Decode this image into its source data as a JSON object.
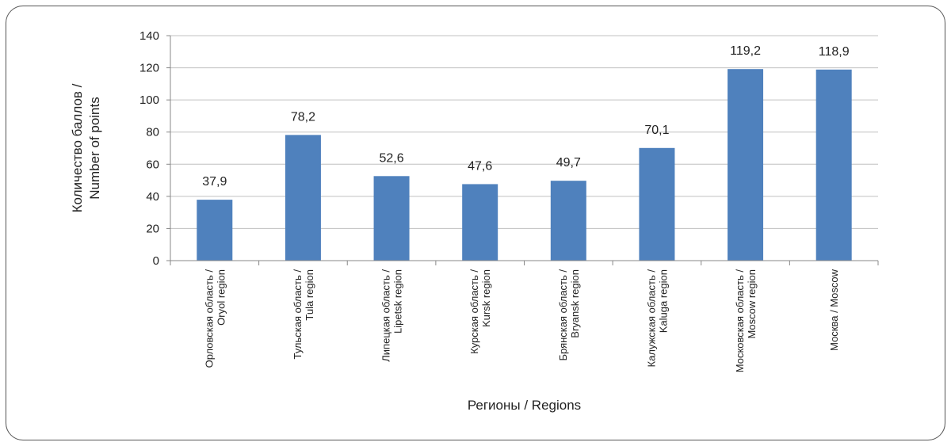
{
  "chart_data": {
    "type": "bar",
    "categories": [
      [
        "Орловская область /",
        "Oryol region"
      ],
      [
        "Тульская область /",
        "Tula region"
      ],
      [
        "Липецкая область /",
        "Lipetsk region"
      ],
      [
        "Курская область /",
        "Kursk region"
      ],
      [
        "Брянская область /",
        "Bryansk region"
      ],
      [
        "Калужская область /",
        "Kaluga region"
      ],
      [
        "Московская область /",
        "Moscow region"
      ],
      [
        "Москва / Moscow"
      ]
    ],
    "values": [
      37.9,
      78.2,
      52.6,
      47.6,
      49.7,
      70.1,
      119.2,
      118.9
    ],
    "data_labels": [
      "37,9",
      "78,2",
      "52,6",
      "47,6",
      "49,7",
      "70,1",
      "119,2",
      "118,9"
    ],
    "title": "",
    "xlabel": "Регионы / Regions",
    "ylabel": [
      "Количество баллов /",
      "Number of points"
    ],
    "ylim": [
      0,
      140
    ],
    "yticks": [
      0,
      20,
      40,
      60,
      80,
      100,
      120,
      140
    ],
    "grid": true,
    "bar_color": "#4f81bd",
    "grid_color": "#c0c0c0",
    "axis_color": "#888888"
  }
}
